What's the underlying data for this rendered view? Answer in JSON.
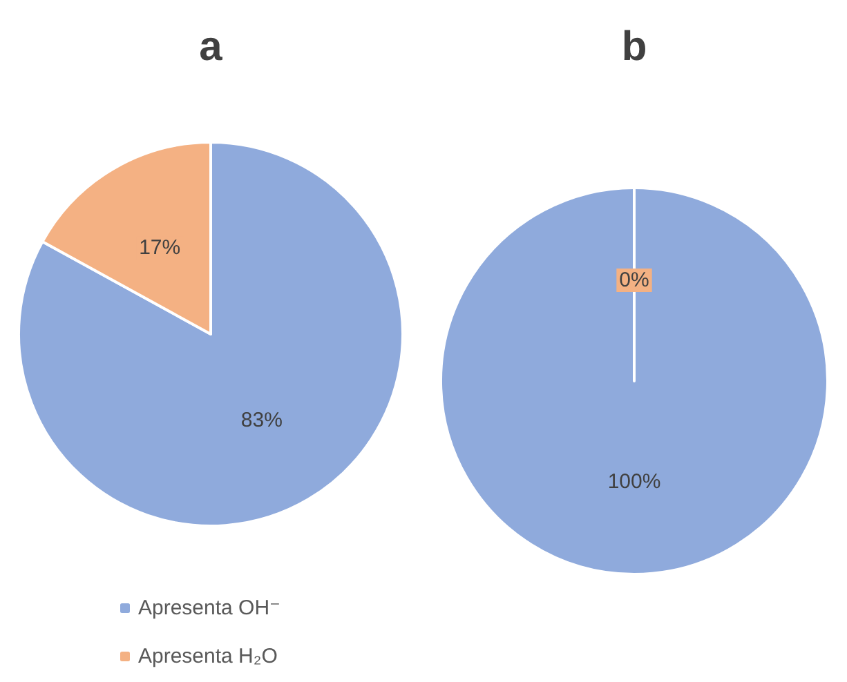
{
  "chart_data": [
    {
      "type": "pie",
      "title": "a",
      "categories": [
        "Apresenta OH⁻",
        "Apresenta H₂O"
      ],
      "values": [
        83,
        17
      ],
      "value_labels": [
        "83%",
        "17%"
      ],
      "colors": [
        "#8faadc",
        "#f4b183"
      ],
      "legend": "bottom left"
    },
    {
      "type": "pie",
      "title": "b",
      "categories": [
        null,
        null
      ],
      "values": [
        100,
        0
      ],
      "value_labels": [
        "100%",
        "0%"
      ],
      "colors": [
        "#8faadc",
        "#f4b183"
      ]
    }
  ]
}
